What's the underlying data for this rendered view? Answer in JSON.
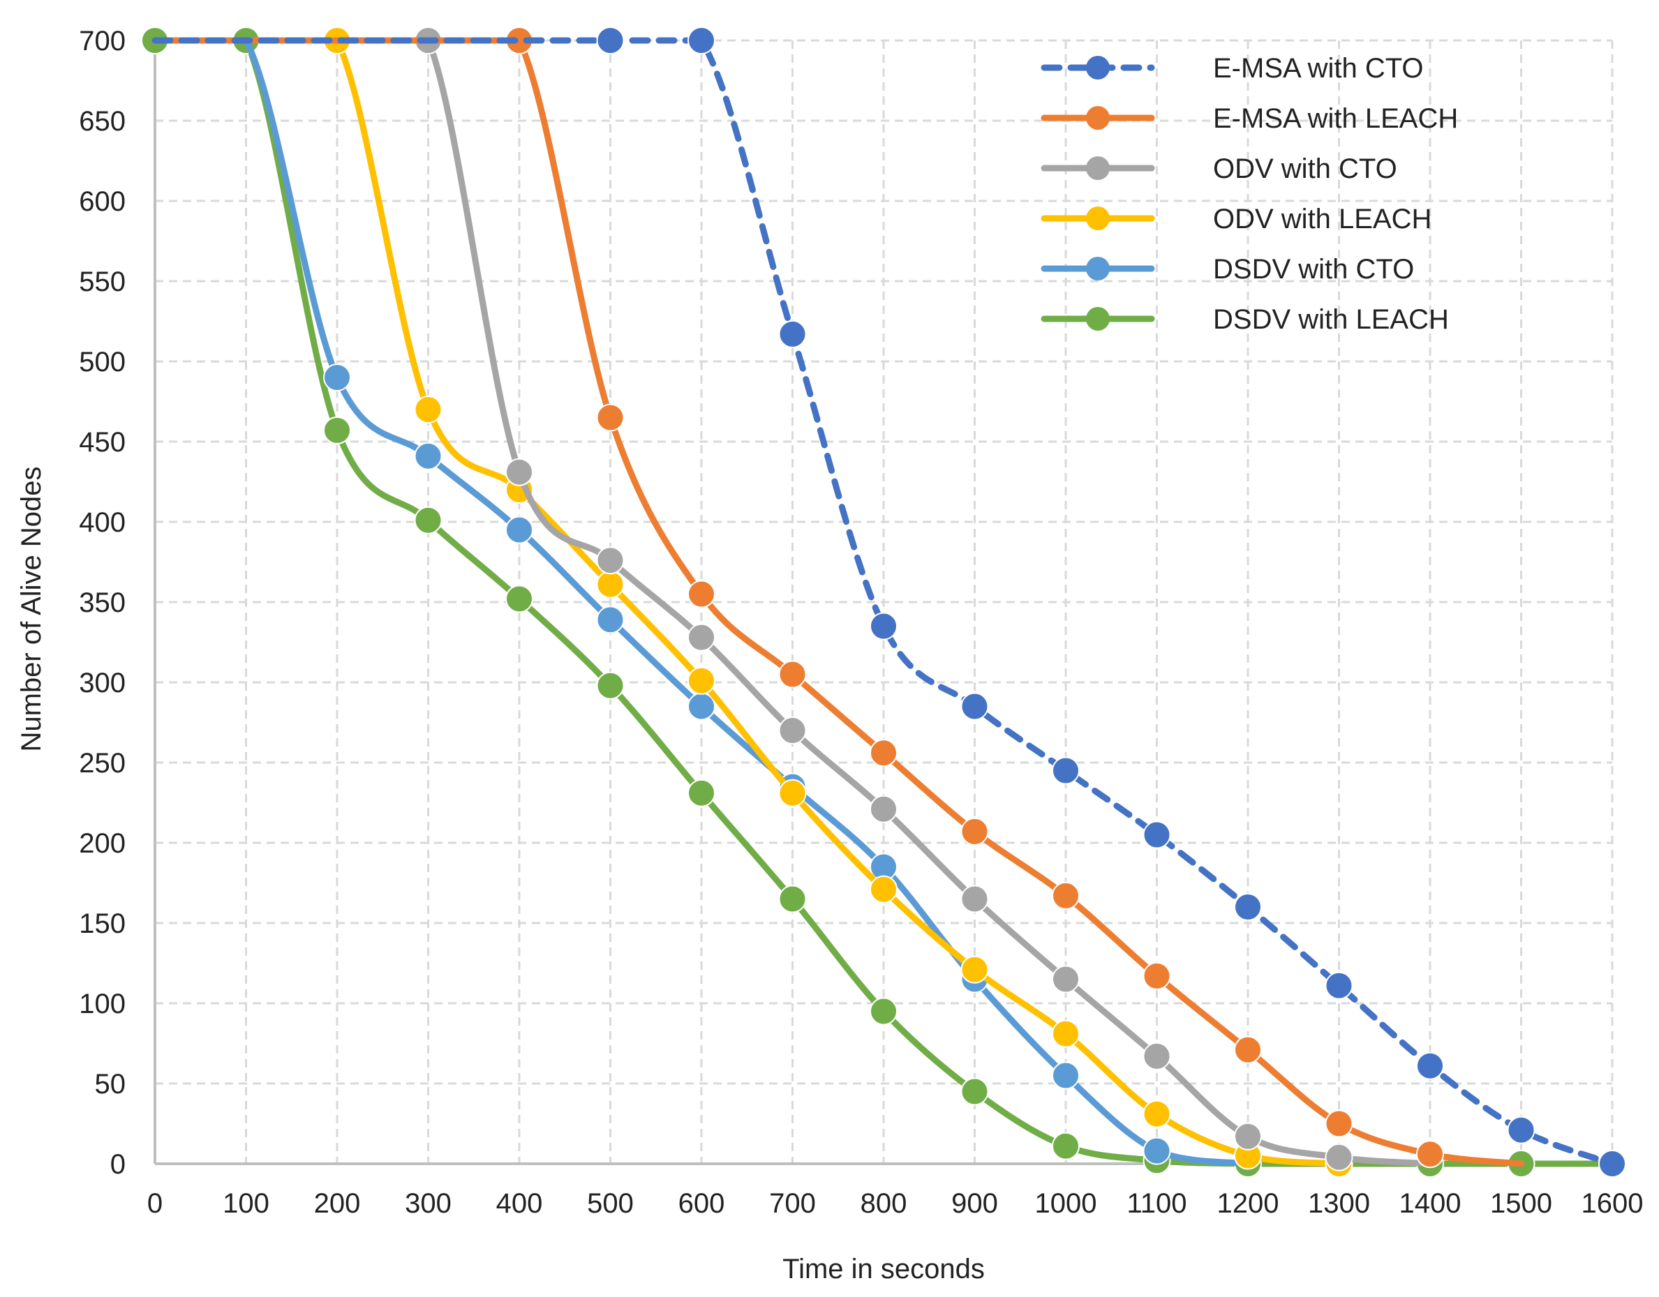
{
  "chart_data": {
    "type": "line",
    "title": "",
    "xlabel": "Time in seconds",
    "ylabel": "Number of Alive Nodes",
    "x": [
      0,
      100,
      200,
      300,
      400,
      500,
      600,
      700,
      800,
      900,
      1000,
      1100,
      1200,
      1300,
      1400,
      1500,
      1600
    ],
    "xlim": [
      0,
      1600
    ],
    "ylim": [
      0,
      700
    ],
    "xticks": [
      "0",
      "100",
      "200",
      "300",
      "400",
      "500",
      "600",
      "700",
      "800",
      "900",
      "1000",
      "1100",
      "1200",
      "1300",
      "1400",
      "1500",
      "1600"
    ],
    "yticks": [
      "0",
      "50",
      "100",
      "150",
      "200",
      "250",
      "300",
      "350",
      "400",
      "450",
      "500",
      "550",
      "600",
      "650",
      "700"
    ],
    "grid": true,
    "legend_position": "top-right",
    "series": [
      {
        "name": "E-MSA with CTO",
        "color": "#4472C4",
        "style": "dashed",
        "x": [
          0,
          100,
          200,
          300,
          400,
          500,
          600,
          700,
          800,
          900,
          1000,
          1100,
          1200,
          1300,
          1400,
          1500,
          1600
        ],
        "values": [
          700,
          700,
          700,
          700,
          700,
          700,
          700,
          517,
          335,
          285,
          245,
          205,
          160,
          111,
          61,
          21,
          0
        ],
        "markers": [
          500,
          600,
          700,
          800,
          900,
          1000,
          1100,
          1200,
          1300,
          1400,
          1500,
          1600
        ]
      },
      {
        "name": "E-MSA with LEACH",
        "color": "#ED7D31",
        "style": "solid",
        "x": [
          0,
          100,
          200,
          300,
          400,
          500,
          600,
          700,
          800,
          900,
          1000,
          1100,
          1200,
          1300,
          1400,
          1500
        ],
        "values": [
          700,
          700,
          700,
          700,
          700,
          465,
          355,
          305,
          256,
          207,
          167,
          117,
          71,
          25,
          6,
          0
        ],
        "markers": [
          400,
          500,
          600,
          700,
          800,
          900,
          1000,
          1100,
          1200,
          1300,
          1400
        ]
      },
      {
        "name": "ODV with CTO",
        "color": "#A5A5A5",
        "style": "solid",
        "x": [
          0,
          100,
          200,
          300,
          400,
          500,
          600,
          700,
          800,
          900,
          1000,
          1100,
          1200,
          1300,
          1400
        ],
        "values": [
          700,
          700,
          700,
          700,
          431,
          376,
          328,
          270,
          221,
          165,
          115,
          67,
          17,
          4,
          0
        ],
        "markers": [
          300,
          400,
          500,
          600,
          700,
          800,
          900,
          1000,
          1100,
          1200,
          1300
        ]
      },
      {
        "name": "ODV with LEACH",
        "color": "#FFC000",
        "style": "solid",
        "x": [
          0,
          100,
          200,
          300,
          400,
          500,
          600,
          700,
          800,
          900,
          1000,
          1100,
          1200,
          1300
        ],
        "values": [
          700,
          700,
          700,
          470,
          420,
          361,
          301,
          231,
          171,
          121,
          81,
          31,
          5,
          0
        ],
        "markers": [
          200,
          300,
          400,
          500,
          600,
          700,
          800,
          900,
          1000,
          1100,
          1200,
          1300
        ]
      },
      {
        "name": "DSDV with CTO",
        "color": "#5B9BD5",
        "style": "solid",
        "x": [
          0,
          100,
          200,
          300,
          400,
          500,
          600,
          700,
          800,
          900,
          1000,
          1100,
          1200
        ],
        "values": [
          700,
          700,
          490,
          441,
          395,
          339,
          285,
          235,
          185,
          115,
          55,
          8,
          0
        ],
        "markers": [
          200,
          300,
          400,
          500,
          600,
          700,
          800,
          900,
          1000,
          1100
        ]
      },
      {
        "name": "DSDV with LEACH",
        "color": "#70AD47",
        "style": "solid",
        "x": [
          0,
          100,
          200,
          300,
          400,
          500,
          600,
          700,
          800,
          900,
          1000,
          1100,
          1200,
          1300,
          1400,
          1500,
          1600
        ],
        "values": [
          700,
          700,
          457,
          401,
          352,
          298,
          231,
          165,
          95,
          45,
          11,
          2,
          0,
          0,
          0,
          0,
          0
        ],
        "markers": [
          0,
          100,
          200,
          300,
          400,
          500,
          600,
          700,
          800,
          900,
          1000,
          1100,
          1200,
          1300,
          1400,
          1500,
          1600
        ]
      }
    ]
  }
}
